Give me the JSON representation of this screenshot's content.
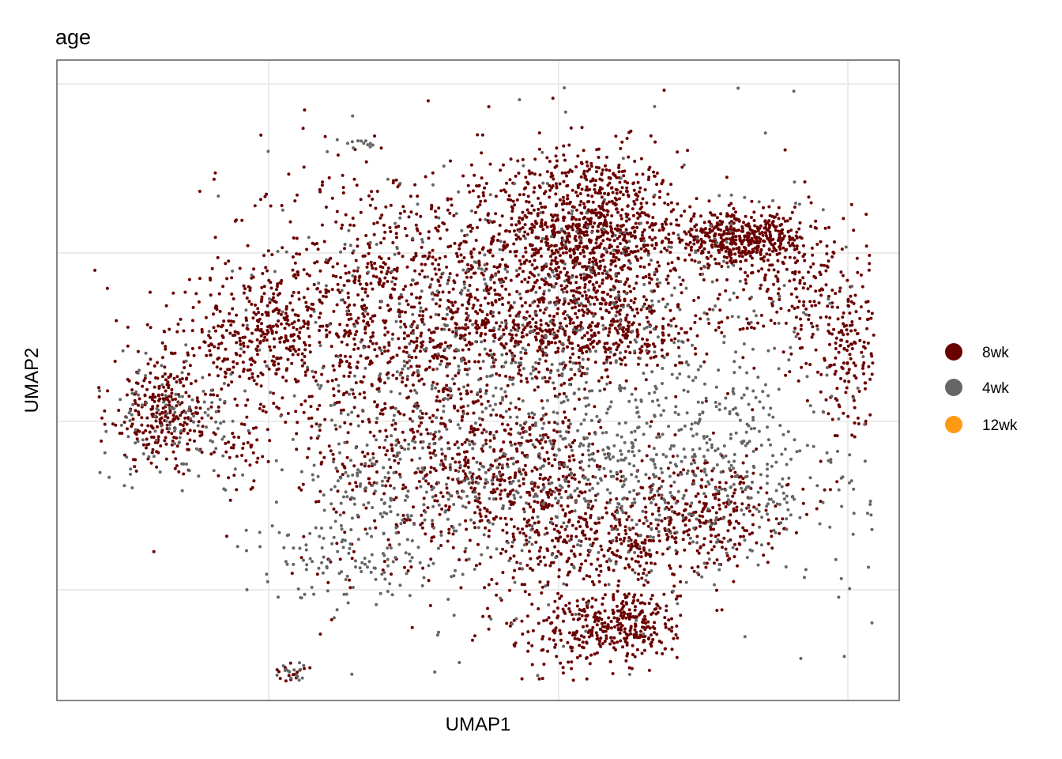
{
  "chart_data": {
    "type": "scatter",
    "title": "age",
    "xlabel": "UMAP1",
    "ylabel": "UMAP2",
    "axis_ticks_shown": false,
    "grid": true,
    "legend_position": "right",
    "series": [
      {
        "name": "8wk",
        "color": "#6B0000"
      },
      {
        "name": "4wk",
        "color": "#666666"
      },
      {
        "name": "12wk",
        "color": "#FF9913"
      }
    ],
    "clusters": [
      {
        "series": 0,
        "center": [
          0.63,
          0.73
        ],
        "spread": [
          0.055,
          0.065
        ],
        "n": 1000
      },
      {
        "series": 0,
        "center": [
          0.62,
          0.58
        ],
        "spread": [
          0.085,
          0.035
        ],
        "n": 500
      },
      {
        "series": 0,
        "center": [
          0.43,
          0.62
        ],
        "spread": [
          0.12,
          0.11
        ],
        "n": 1100
      },
      {
        "series": 0,
        "center": [
          0.13,
          0.44
        ],
        "spread": [
          0.035,
          0.04
        ],
        "n": 180
      },
      {
        "series": 0,
        "center": [
          0.2,
          0.53
        ],
        "spread": [
          0.06,
          0.04
        ],
        "n": 140
      },
      {
        "series": 0,
        "center": [
          0.81,
          0.72
        ],
        "spread": [
          0.04,
          0.02
        ],
        "n": 450
      },
      {
        "series": 0,
        "center": [
          0.89,
          0.64
        ],
        "spread": [
          0.05,
          0.07
        ],
        "n": 250
      },
      {
        "series": 0,
        "center": [
          0.44,
          0.38
        ],
        "spread": [
          0.09,
          0.1
        ],
        "n": 450
      },
      {
        "series": 0,
        "center": [
          0.55,
          0.35
        ],
        "spread": [
          0.06,
          0.05
        ],
        "n": 300
      },
      {
        "series": 0,
        "center": [
          0.65,
          0.25
        ],
        "spread": [
          0.07,
          0.04
        ],
        "n": 350
      },
      {
        "series": 0,
        "center": [
          0.68,
          0.12
        ],
        "spread": [
          0.03,
          0.03
        ],
        "n": 250
      },
      {
        "series": 0,
        "center": [
          0.61,
          0.11
        ],
        "spread": [
          0.04,
          0.04
        ],
        "n": 150
      },
      {
        "series": 0,
        "center": [
          0.77,
          0.3
        ],
        "spread": [
          0.05,
          0.04
        ],
        "n": 250
      },
      {
        "series": 0,
        "center": [
          0.94,
          0.53
        ],
        "spread": [
          0.02,
          0.06
        ],
        "n": 120
      },
      {
        "series": 0,
        "center": [
          0.12,
          0.46
        ],
        "spread": [
          0.025,
          0.03
        ],
        "n": 80
      },
      {
        "series": 0,
        "center": [
          0.26,
          0.59
        ],
        "spread": [
          0.06,
          0.04
        ],
        "n": 200
      },
      {
        "series": 0,
        "center": [
          0.28,
          0.04
        ],
        "spread": [
          0.01,
          0.01
        ],
        "n": 20
      },
      {
        "series": 0,
        "center": [
          0.21,
          0.39
        ],
        "spread": [
          0.02,
          0.02
        ],
        "n": 30
      },
      {
        "series": 1,
        "center": [
          0.6,
          0.48
        ],
        "spread": [
          0.17,
          0.17
        ],
        "n": 1000
      },
      {
        "series": 1,
        "center": [
          0.74,
          0.37
        ],
        "spread": [
          0.12,
          0.08
        ],
        "n": 400
      },
      {
        "series": 1,
        "center": [
          0.14,
          0.44
        ],
        "spread": [
          0.05,
          0.05
        ],
        "n": 120
      },
      {
        "series": 1,
        "center": [
          0.37,
          0.22
        ],
        "spread": [
          0.07,
          0.04
        ],
        "n": 120
      },
      {
        "series": 1,
        "center": [
          0.41,
          0.33
        ],
        "spread": [
          0.06,
          0.04
        ],
        "n": 100
      },
      {
        "series": 1,
        "center": [
          0.36,
          0.87
        ],
        "spread": [
          0.01,
          0.005
        ],
        "n": 10
      },
      {
        "series": 1,
        "center": [
          0.28,
          0.04
        ],
        "spread": [
          0.01,
          0.01
        ],
        "n": 15
      }
    ]
  },
  "legend": [
    {
      "label": "8wk",
      "color": "#6B0000"
    },
    {
      "label": "4wk",
      "color": "#666666"
    },
    {
      "label": "12wk",
      "color": "#FF9913"
    }
  ]
}
